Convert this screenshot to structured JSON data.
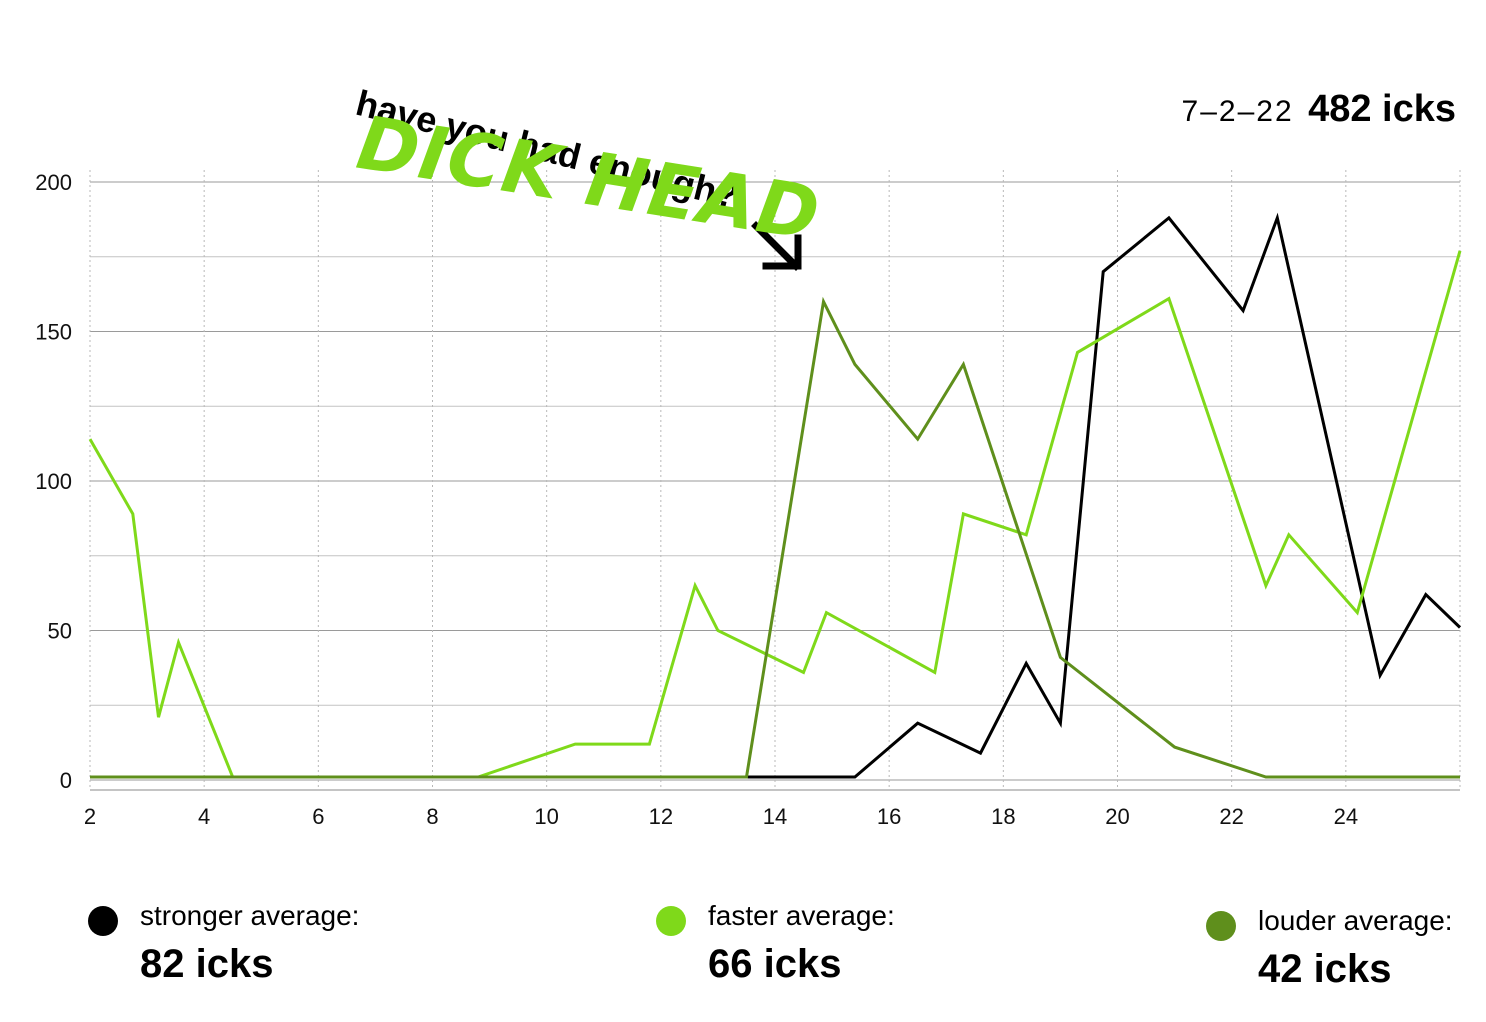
{
  "header": {
    "date": "7–2–22",
    "total": "482 icks"
  },
  "annotation": {
    "question": "have you had enough?",
    "shout": "DICK HEAD",
    "arrow_icon": "arrow-down-right-icon"
  },
  "legend": [
    {
      "label": "stronger average:",
      "value": "82 icks",
      "color": "#000000"
    },
    {
      "label": "faster average:",
      "value": "66 icks",
      "color": "#7fd91a"
    },
    {
      "label": "louder average:",
      "value": "42 icks",
      "color": "#5f8f1c"
    }
  ],
  "chart_data": {
    "type": "line",
    "x_ticks": [
      2,
      4,
      6,
      8,
      10,
      12,
      14,
      16,
      18,
      20,
      22,
      24
    ],
    "y_ticks": [
      0,
      50,
      100,
      150,
      200
    ],
    "xlim": [
      2,
      26
    ],
    "ylim": [
      0,
      200
    ],
    "grid": true,
    "series": [
      {
        "name": "stronger",
        "color": "#000000",
        "x": [
          2,
          15.4,
          16.5,
          17.6,
          18.4,
          19.0,
          19.75,
          20.9,
          22.2,
          22.8,
          24.6,
          25.4,
          26
        ],
        "y": [
          1,
          1,
          19,
          9,
          39,
          19,
          170,
          188,
          157,
          188,
          35,
          62,
          51
        ]
      },
      {
        "name": "faster",
        "color": "#7fd91a",
        "x": [
          2,
          2.75,
          3.2,
          3.55,
          4.5,
          8.8,
          10.5,
          11.8,
          12.6,
          13.0,
          14.5,
          14.9,
          16.8,
          17.3,
          18.4,
          19.3,
          20.9,
          22.6,
          23.0,
          24.2,
          26
        ],
        "y": [
          114,
          89,
          21,
          46,
          1,
          1,
          12,
          12,
          65,
          50,
          36,
          56,
          36,
          89,
          82,
          143,
          161,
          65,
          82,
          56,
          177
        ]
      },
      {
        "name": "louder",
        "color": "#5f8f1c",
        "x": [
          2,
          13.5,
          14.85,
          15.4,
          16.5,
          17.3,
          19.0,
          21.0,
          22.6,
          26
        ],
        "y": [
          1,
          1,
          160,
          139,
          114,
          139,
          41,
          11,
          1,
          1
        ]
      }
    ]
  }
}
